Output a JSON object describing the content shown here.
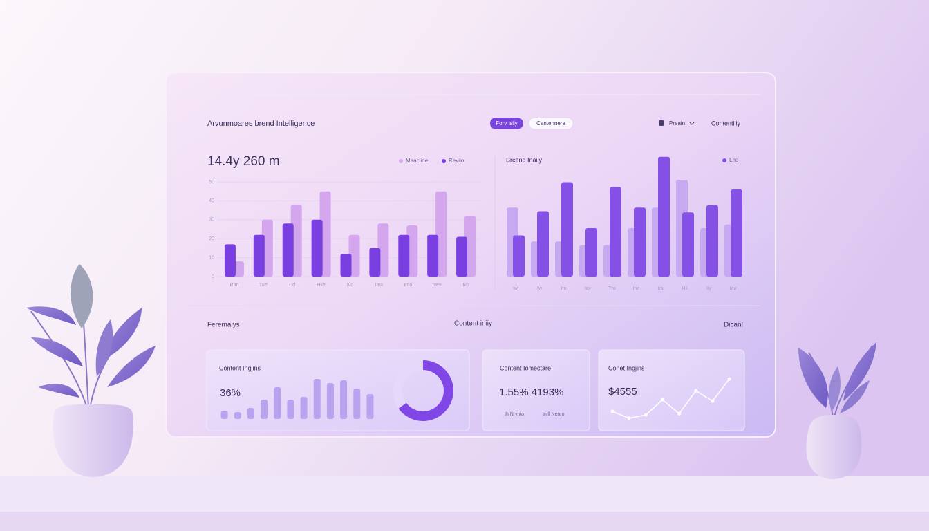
{
  "header": {
    "title": "Arvunmoares brend Intelligence",
    "tabs": [
      "Forv lsiiy",
      "Cantennera"
    ],
    "filter": "Preain",
    "link": "Contentiliy"
  },
  "section": {
    "left": "Feremalys",
    "center": "Content iniiy",
    "right": "Dicanl"
  },
  "cards": [
    {
      "title": "Content Ingjins",
      "value": "36%"
    },
    {
      "title": "Content Iomectare",
      "value": "1.55% 4193%",
      "notes": [
        "Ih Nrvhio",
        "Inill Nenro"
      ]
    },
    {
      "title": "Conet Ingjins",
      "value": "$4555"
    }
  ],
  "chart_data": [
    {
      "type": "bar",
      "title": "14.4y 260 m",
      "categories": [
        "Ran",
        "Tue",
        "Dd",
        "Hke",
        "Ivo",
        "Ilea",
        "Iroo",
        "Ivea",
        "Ivo"
      ],
      "series": [
        {
          "name": "Maaciine",
          "color": "#d3a6ee",
          "values": [
            8,
            30,
            38,
            45,
            22,
            28,
            27,
            45,
            32
          ]
        },
        {
          "name": "Reviio",
          "color": "#7a3fe0",
          "values": [
            17,
            22,
            28,
            30,
            12,
            15,
            22,
            22,
            21
          ]
        }
      ],
      "ylim": [
        0,
        50
      ],
      "yticks": [
        0,
        10,
        20,
        30,
        40,
        50
      ],
      "grid": true
    },
    {
      "type": "bar",
      "title": "Brcend Inaiiy",
      "categories": [
        "Iw",
        "Iw",
        "Iro",
        "Iay",
        "Tro",
        "Ino",
        "Ira",
        "Hii",
        "Iiy",
        "Ieo"
      ],
      "series": [
        {
          "color": "#c7a9f2",
          "values": [
            57,
            29,
            29,
            26,
            26,
            40,
            57,
            80,
            40,
            43
          ]
        },
        {
          "name": "Lnd",
          "color": "#8550e6",
          "values": [
            34,
            54,
            78,
            40,
            74,
            57,
            99,
            53,
            59,
            72
          ]
        }
      ],
      "ylim": [
        0,
        100
      ]
    },
    {
      "type": "bar",
      "color": "#b9a3ef",
      "values": [
        12,
        10,
        16,
        28,
        46,
        28,
        32,
        58,
        52,
        56,
        44,
        36
      ],
      "ylim": [
        0,
        60
      ]
    },
    {
      "type": "donut",
      "values": [
        65,
        35
      ],
      "colors": [
        "#8046e6",
        "#e4d8fb"
      ]
    },
    {
      "type": "line",
      "color": "#ffffff",
      "values": [
        23,
        8,
        15,
        49,
        18,
        69,
        46,
        95
      ],
      "ylim": [
        0,
        100
      ]
    }
  ]
}
